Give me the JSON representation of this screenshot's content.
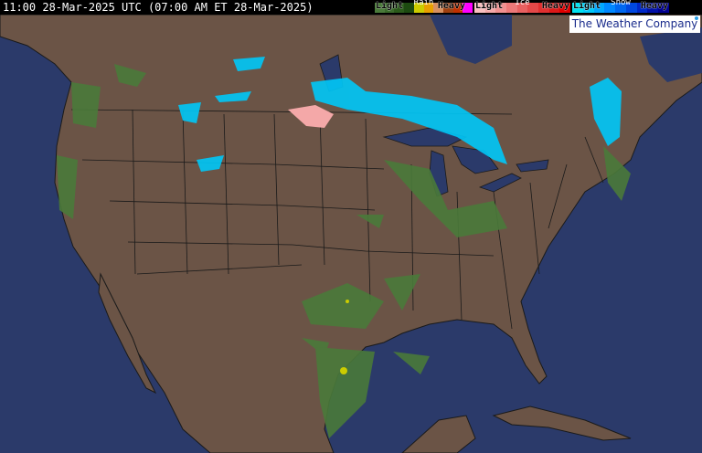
{
  "header": {
    "timestamp": "11:00 28-Mar-2025 UTC (07:00 AM ET 28-Mar-2025)"
  },
  "legend": [
    {
      "title": "Rain",
      "light": "Light",
      "heavy": "Heavy",
      "colors": [
        "#4a7a3a",
        "#3a6a2a",
        "#2a5a1a",
        "#1c4a10",
        "#cccc00",
        "#e8a000",
        "#d89060",
        "#a04010",
        "#c03000",
        "#ff00ff"
      ]
    },
    {
      "title": "Ice",
      "light": "Light",
      "heavy": "Heavy",
      "colors": [
        "#f8c0c0",
        "#f4a8a8",
        "#f09090",
        "#ec7878",
        "#e86060",
        "#e44848",
        "#e03030",
        "#dc1818",
        "#e00000"
      ]
    },
    {
      "title": "Snow",
      "light": "Light",
      "heavy": "Heavy",
      "colors": [
        "#00e0f0",
        "#00c8f8",
        "#00a8ff",
        "#0088ff",
        "#0068f0",
        "#0048e0",
        "#0028c8",
        "#0010a8",
        "#000090"
      ]
    }
  ],
  "brand": "The Weather Company",
  "colors": {
    "ocean": "#2b3a6a",
    "land": "#6b5446",
    "borders": "#1a1a1a",
    "lakes": "#2b3a6a"
  }
}
